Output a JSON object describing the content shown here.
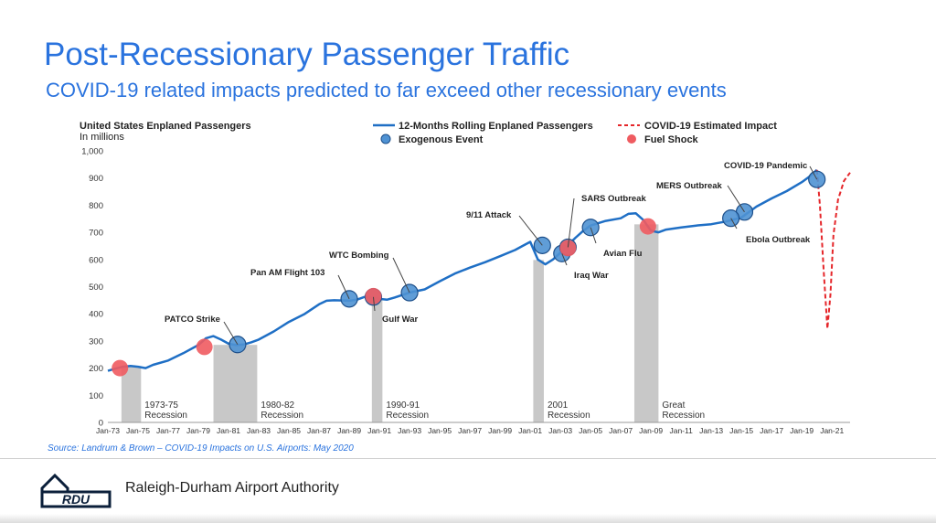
{
  "header": {
    "title": "Post-Recessionary Passenger Traffic",
    "subtitle": "COVID-19 related impacts predicted to far exceed other recessionary events"
  },
  "footer": {
    "source": "Source: Landrum & Brown – COVID-19 Impacts on U.S. Airports: May 2020",
    "org": "Raleigh-Durham Airport Authority",
    "logo_text": "RDU"
  },
  "colors": {
    "title": "#2a73de",
    "line": "#1f6fc5",
    "covid": "#e5262a",
    "event": "#4f92d3",
    "fuel": "#ef5b60",
    "recession": "#c8c8c8"
  },
  "chart_data": {
    "type": "line",
    "title": "United States Enplaned Passengers",
    "subtitle": "In millions",
    "ylim": [
      0,
      1000
    ],
    "yticks": [
      0,
      100,
      200,
      300,
      400,
      500,
      600,
      700,
      800,
      900,
      1000
    ],
    "ytick_labels": [
      "0",
      "100",
      "200",
      "300",
      "400",
      "500",
      "600",
      "700",
      "800",
      "900",
      "1,000"
    ],
    "xlim": [
      1973,
      2022.2
    ],
    "xtick_labels": [
      "Jan-73",
      "Jan-75",
      "Jan-77",
      "Jan-79",
      "Jan-81",
      "Jan-83",
      "Jan-85",
      "Jan-87",
      "Jan-89",
      "Jan-91",
      "Jan-93",
      "Jan-95",
      "Jan-97",
      "Jan-99",
      "Jan-01",
      "Jan-03",
      "Jan-05",
      "Jan-07",
      "Jan-09",
      "Jan-11",
      "Jan-13",
      "Jan-15",
      "Jan-17",
      "Jan-19",
      "Jan-21"
    ],
    "legend": {
      "placement": "top",
      "entries": [
        {
          "label": "12-Months Rolling Enplaned Passengers",
          "kind": "line"
        },
        {
          "label": "Exogenous Event",
          "kind": "event"
        },
        {
          "label": "COVID-19 Estimated Impact",
          "kind": "dashed"
        },
        {
          "label": "Fuel Shock",
          "kind": "fuel"
        }
      ]
    },
    "series": [
      {
        "name": "12-Months Rolling Enplaned Passengers",
        "x": [
          1973,
          1973.5,
          1974,
          1974.5,
          1975,
          1975.5,
          1976,
          1977,
          1978,
          1979,
          1979.5,
          1980,
          1980.5,
          1981,
          1981.5,
          1982,
          1982.5,
          1983,
          1984,
          1985,
          1986,
          1987,
          1987.5,
          1988,
          1989,
          1989.5,
          1990,
          1990.5,
          1991,
          1991.5,
          1992,
          1993,
          1994,
          1995,
          1996,
          1997,
          1998,
          1999,
          2000,
          2000.5,
          2001,
          2001.5,
          2002,
          2002.5,
          2003,
          2004,
          2004.5,
          2005,
          2006,
          2007,
          2007.5,
          2008,
          2008.5,
          2009,
          2009.5,
          2010,
          2011,
          2012,
          2013,
          2014,
          2015,
          2016,
          2017,
          2018,
          2019,
          2019.5,
          2020
        ],
        "y": [
          190,
          198,
          205,
          208,
          205,
          200,
          212,
          228,
          255,
          285,
          310,
          318,
          305,
          290,
          285,
          287,
          295,
          305,
          335,
          370,
          398,
          435,
          448,
          450,
          448,
          452,
          462,
          460,
          455,
          452,
          460,
          478,
          490,
          520,
          548,
          570,
          590,
          612,
          635,
          650,
          665,
          600,
          582,
          600,
          625,
          680,
          705,
          725,
          742,
          752,
          768,
          770,
          745,
          706,
          700,
          710,
          718,
          725,
          730,
          740,
          755,
          795,
          825,
          852,
          885,
          905,
          930
        ]
      }
    ],
    "covid_estimate": {
      "name": "COVID-19 Estimated Impact",
      "x": [
        2020,
        2020.2,
        2020.45,
        2020.7,
        2020.9,
        2021.1,
        2021.4,
        2021.8,
        2022.2
      ],
      "y": [
        930,
        800,
        560,
        345,
        470,
        690,
        820,
        890,
        920
      ]
    },
    "recessions": [
      {
        "label": "1973-75 Recession",
        "start": 1973.9,
        "end": 1975.2
      },
      {
        "label": "1980-82 Recession",
        "start": 1980.0,
        "end": 1982.9
      },
      {
        "label": "1990-91 Recession",
        "start": 1990.5,
        "end": 1991.2
      },
      {
        "label": "2001 Recession",
        "start": 2001.2,
        "end": 2001.9
      },
      {
        "label": "Great Recession",
        "start": 2007.9,
        "end": 2009.5
      }
    ],
    "fuel_shocks": [
      {
        "x": 1973.8,
        "y": 200
      },
      {
        "x": 1979.4,
        "y": 278
      },
      {
        "x": 1990.6,
        "y": 465
      },
      {
        "x": 2003.5,
        "y": 642
      },
      {
        "x": 2008.8,
        "y": 722
      }
    ],
    "events": [
      {
        "label": "PATCO Strike",
        "x": 1981.6,
        "y": 287
      },
      {
        "label": "Pan AM Flight 103",
        "x": 1989.0,
        "y": 455
      },
      {
        "label": "Gulf War",
        "x": 1990.6,
        "y": 462
      },
      {
        "label": "WTC Bombing",
        "x": 1993.0,
        "y": 478
      },
      {
        "label": "9/11 Attack",
        "x": 2001.8,
        "y": 652
      },
      {
        "label": "Iraq War",
        "x": 2003.1,
        "y": 622
      },
      {
        "label": "SARS Outbreak",
        "x": 2003.5,
        "y": 645
      },
      {
        "label": "Avian Flu",
        "x": 2005.0,
        "y": 718
      },
      {
        "label": "MERS Outbreak",
        "x": 2015.2,
        "y": 775
      },
      {
        "label": "Ebola Outbreak",
        "x": 2014.3,
        "y": 752
      },
      {
        "label": "COVID-19 Pandemic",
        "x": 2020.0,
        "y": 895
      }
    ]
  }
}
